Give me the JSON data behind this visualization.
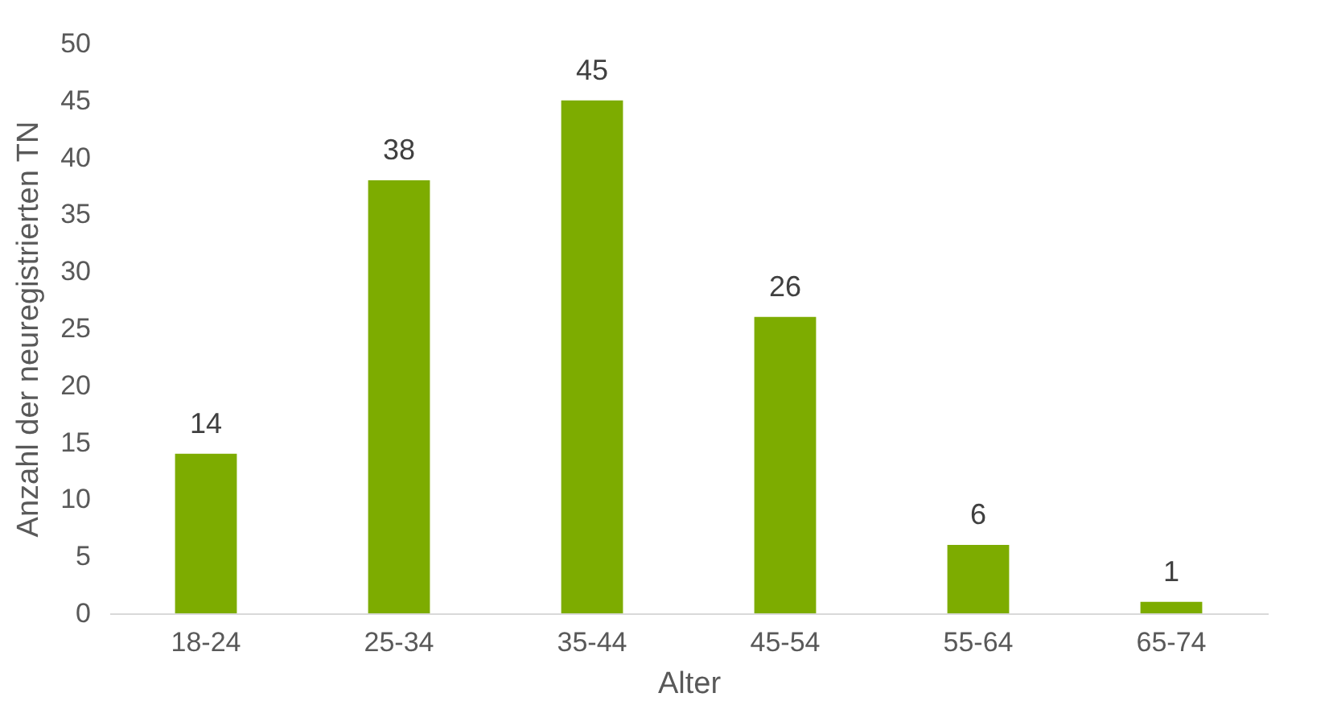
{
  "chart_data": {
    "type": "bar",
    "xlabel": "Alter",
    "ylabel": "Anzahl der neuregistrierten TN",
    "categories": [
      "18-24",
      "25-34",
      "35-44",
      "45-54",
      "55-64",
      "65-74"
    ],
    "values": [
      14,
      38,
      45,
      26,
      6,
      1
    ],
    "color": "#7dac00",
    "ylim": [
      0,
      50
    ],
    "yticks": [
      0,
      5,
      10,
      15,
      20,
      25,
      30,
      35,
      40,
      45,
      50
    ],
    "data_labels": true,
    "grid": false
  }
}
